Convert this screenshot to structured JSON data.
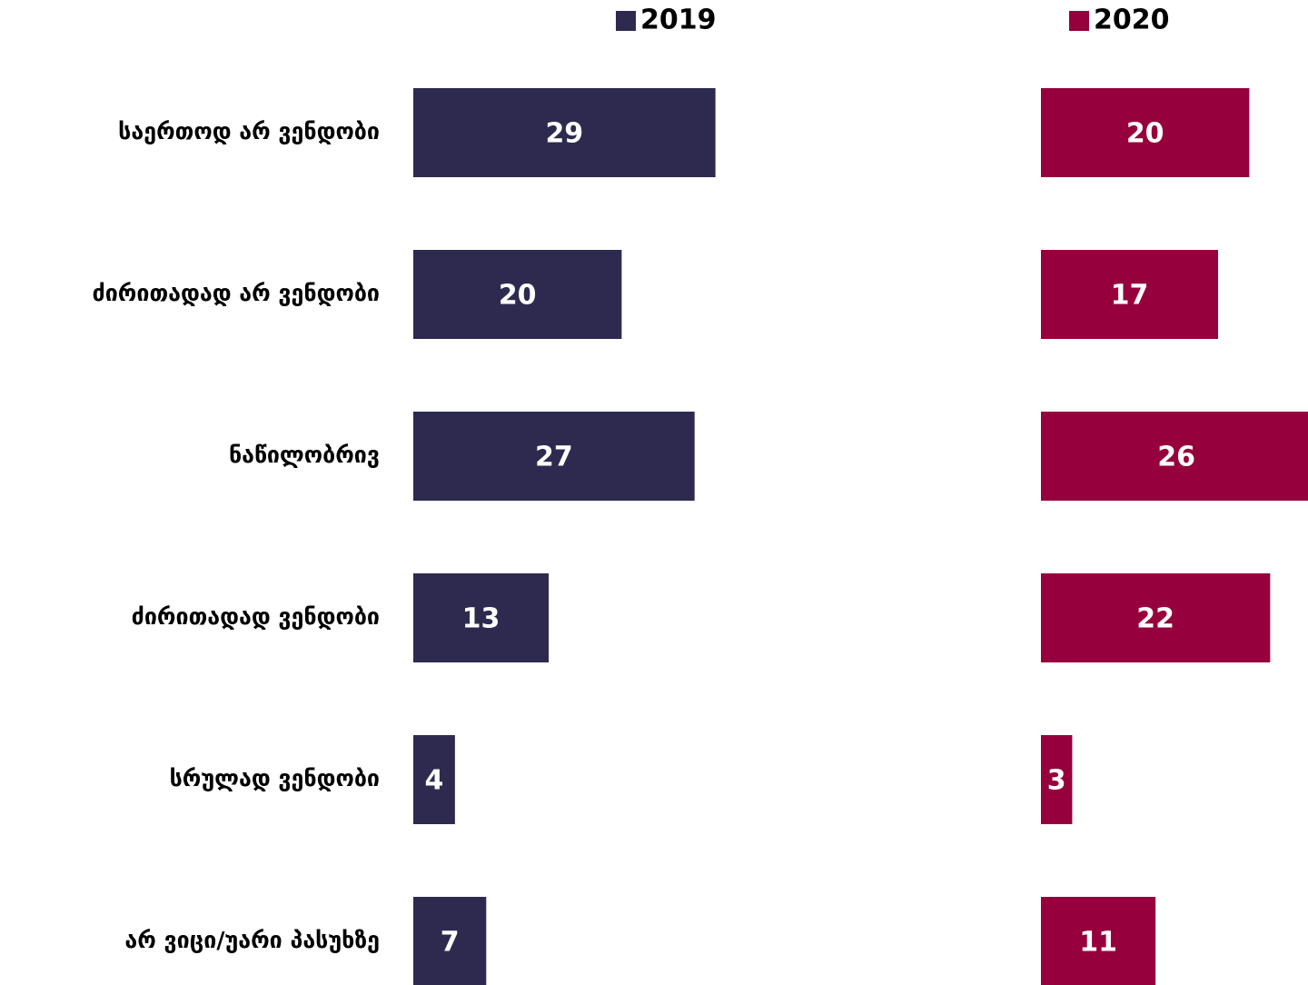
{
  "chart_data": {
    "type": "bar",
    "categories": [
      "საერთოდ არ ვენდობი",
      "ძირითადად არ ვენდობი",
      "ნაწილობრივ",
      "ძირითადად ვენდობი",
      "სრულად ვენდობი",
      "არ ვიცი/უარი პასუხზე"
    ],
    "series": [
      {
        "name": "2019",
        "color": "#2e2a4f",
        "values": [
          29,
          20,
          27,
          13,
          4,
          7
        ]
      },
      {
        "name": "2020",
        "color": "#96003c",
        "values": [
          20,
          17,
          26,
          22,
          3,
          11
        ]
      }
    ]
  }
}
